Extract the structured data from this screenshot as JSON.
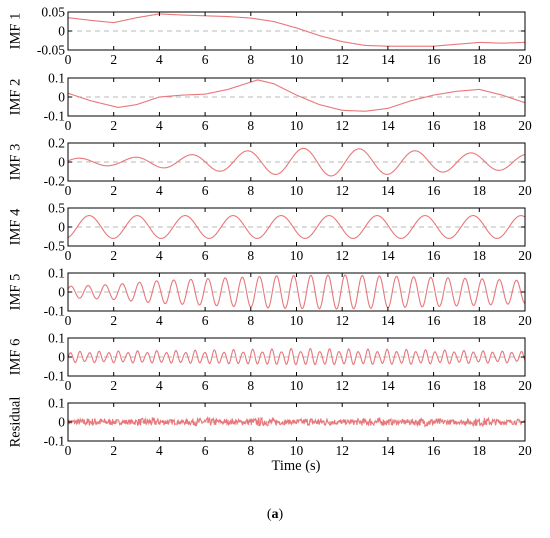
{
  "chart_data": {
    "type": "line",
    "panels": [
      {
        "name": "IMF 1",
        "ylabel": "IMF 1",
        "ylim": [
          -0.05,
          0.05
        ],
        "yticks": [
          0.05,
          0,
          -0.05
        ],
        "ytick_labels": [
          "0.05",
          "0",
          "-0.05"
        ],
        "pattern": {
          "kind": "slow",
          "points": [
            [
              0,
              0.035
            ],
            [
              1,
              0.028
            ],
            [
              2,
              0.022
            ],
            [
              3,
              0.035
            ],
            [
              4,
              0.045
            ],
            [
              5,
              0.042
            ],
            [
              6,
              0.04
            ],
            [
              7,
              0.038
            ],
            [
              8,
              0.034
            ],
            [
              9,
              0.025
            ],
            [
              10,
              0.008
            ],
            [
              11,
              -0.012
            ],
            [
              12,
              -0.028
            ],
            [
              13,
              -0.038
            ],
            [
              14,
              -0.04
            ],
            [
              15,
              -0.04
            ],
            [
              16,
              -0.04
            ],
            [
              17,
              -0.035
            ],
            [
              18,
              -0.03
            ],
            [
              19,
              -0.032
            ],
            [
              20,
              -0.03
            ]
          ]
        }
      },
      {
        "name": "IMF 2",
        "ylabel": "IMF 2",
        "ylim": [
          -0.1,
          0.1
        ],
        "yticks": [
          0.1,
          0,
          -0.1
        ],
        "ytick_labels": [
          "0.1",
          "0",
          "-0.1"
        ],
        "pattern": {
          "kind": "slow",
          "points": [
            [
              0,
              0.02
            ],
            [
              1,
              -0.02
            ],
            [
              2.2,
              -0.055
            ],
            [
              3,
              -0.04
            ],
            [
              4,
              0
            ],
            [
              5,
              0.01
            ],
            [
              6,
              0.015
            ],
            [
              7,
              0.04
            ],
            [
              8.3,
              0.09
            ],
            [
              9,
              0.07
            ],
            [
              10,
              0.01
            ],
            [
              11,
              -0.04
            ],
            [
              12,
              -0.07
            ],
            [
              13,
              -0.075
            ],
            [
              14,
              -0.06
            ],
            [
              15,
              -0.02
            ],
            [
              16,
              0.01
            ],
            [
              17,
              0.03
            ],
            [
              18,
              0.04
            ],
            [
              19,
              0.01
            ],
            [
              20,
              -0.03
            ]
          ]
        }
      },
      {
        "name": "IMF 3",
        "ylabel": "IMF 3",
        "ylim": [
          -0.2,
          0.2
        ],
        "yticks": [
          0.2,
          0,
          -0.2
        ],
        "ytick_labels": [
          "0.2",
          "0",
          "-0.2"
        ],
        "pattern": {
          "kind": "osc",
          "period": 2.45,
          "phase": 0.3,
          "amp": [
            [
              0,
              0.04
            ],
            [
              2,
              0.04
            ],
            [
              5,
              0.07
            ],
            [
              8,
              0.12
            ],
            [
              11,
              0.15
            ],
            [
              14,
              0.13
            ],
            [
              17,
              0.1
            ],
            [
              20,
              0.08
            ]
          ]
        }
      },
      {
        "name": "IMF 4",
        "ylabel": "IMF 4",
        "ylim": [
          -0.5,
          0.5
        ],
        "yticks": [
          0.5,
          0,
          -0.5
        ],
        "ytick_labels": [
          "0.5",
          "0",
          "-0.5"
        ],
        "pattern": {
          "kind": "osc",
          "period": 2.1,
          "phase": -1.2,
          "amp": [
            [
              0,
              0.3
            ],
            [
              20,
              0.3
            ]
          ]
        }
      },
      {
        "name": "IMF 5",
        "ylabel": "IMF 5",
        "ylim": [
          -0.1,
          0.1
        ],
        "yticks": [
          0.1,
          0,
          -0.1
        ],
        "ytick_labels": [
          "0.1",
          "0",
          "-0.1"
        ],
        "pattern": {
          "kind": "osc",
          "period": 0.75,
          "phase": 0.5,
          "amp": [
            [
              0,
              0.03
            ],
            [
              2,
              0.04
            ],
            [
              4,
              0.06
            ],
            [
              6,
              0.07
            ],
            [
              9,
              0.085
            ],
            [
              12,
              0.09
            ],
            [
              15,
              0.08
            ],
            [
              18,
              0.07
            ],
            [
              20,
              0.06
            ]
          ]
        }
      },
      {
        "name": "IMF 6",
        "ylabel": "IMF 6",
        "ylim": [
          -0.1,
          0.1
        ],
        "yticks": [
          0.1,
          0,
          -0.1
        ],
        "ytick_labels": [
          "0.1",
          "0",
          "-0.1"
        ],
        "pattern": {
          "kind": "osc",
          "period": 0.42,
          "phase": 0,
          "amp": [
            [
              0,
              0.03
            ],
            [
              5,
              0.035
            ],
            [
              10,
              0.045
            ],
            [
              15,
              0.04
            ],
            [
              20,
              0.03
            ]
          ],
          "mod": 0.4
        }
      },
      {
        "name": "Residual",
        "ylabel": "Residual",
        "ylim": [
          -0.1,
          0.1
        ],
        "yticks": [
          0.1,
          0,
          -0.1
        ],
        "ytick_labels": [
          "0.1",
          "0",
          "-0.1"
        ],
        "pattern": {
          "kind": "noise",
          "amp": 0.022
        }
      }
    ],
    "x": {
      "range": [
        0,
        20
      ],
      "ticks": [
        0,
        2,
        4,
        6,
        8,
        10,
        12,
        14,
        16,
        18,
        20
      ],
      "tick_labels": [
        "0",
        "2",
        "4",
        "6",
        "8",
        "10",
        "12",
        "14",
        "16",
        "18",
        "20"
      ],
      "label": "Time (s)"
    },
    "zero_line": true,
    "line_color": "#e8777a",
    "zero_line_color": "#b8b8b8",
    "grid": false
  },
  "caption": {
    "open": "(",
    "letter": "a",
    "close": ")"
  }
}
